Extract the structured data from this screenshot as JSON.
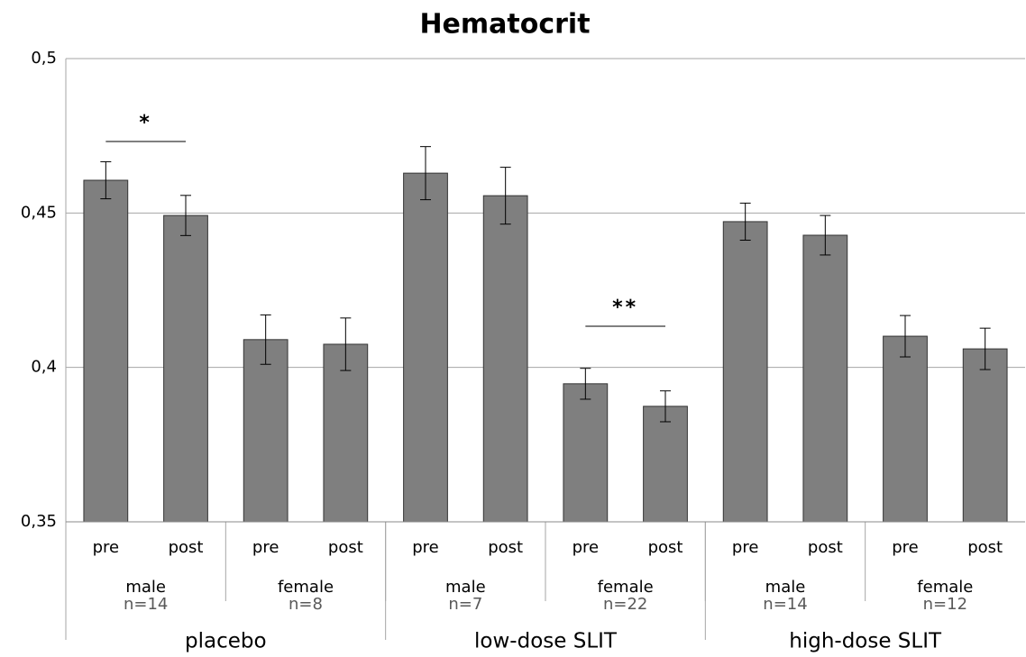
{
  "chart_data": {
    "type": "bar",
    "title": "Hematocrit",
    "categories": [
      "pre",
      "post",
      "pre",
      "post",
      "pre",
      "post",
      "pre",
      "post",
      "pre",
      "post",
      "pre",
      "post"
    ],
    "groups": [
      {
        "label": "male",
        "n": "n=14"
      },
      {
        "label": "female",
        "n": "n=8"
      },
      {
        "label": "male",
        "n": "n=7"
      },
      {
        "label": "female",
        "n": "n=22"
      },
      {
        "label": "male",
        "n": "n=14"
      },
      {
        "label": "female",
        "n": "n=12"
      }
    ],
    "supergroups": [
      "placebo",
      "low-dose SLIT",
      "high-dose SLIT"
    ],
    "values": [
      0.4606,
      0.4492,
      0.409,
      0.4075,
      0.4629,
      0.4556,
      0.3947,
      0.3874,
      0.4472,
      0.4428,
      0.4101,
      0.406
    ],
    "errors": [
      0.006,
      0.0065,
      0.008,
      0.0085,
      0.0086,
      0.0092,
      0.005,
      0.005,
      0.006,
      0.0064,
      0.0067,
      0.0067
    ],
    "color": "#7f7f7f",
    "ylim": [
      0.35,
      0.5
    ],
    "yticks": [
      {
        "value": 0.35,
        "label": "0,35"
      },
      {
        "value": 0.4,
        "label": "0,4"
      },
      {
        "value": 0.45,
        "label": "0,45"
      },
      {
        "value": 0.5,
        "label": "0,5"
      }
    ],
    "grid": true,
    "annotations": [
      "*",
      "**"
    ]
  }
}
